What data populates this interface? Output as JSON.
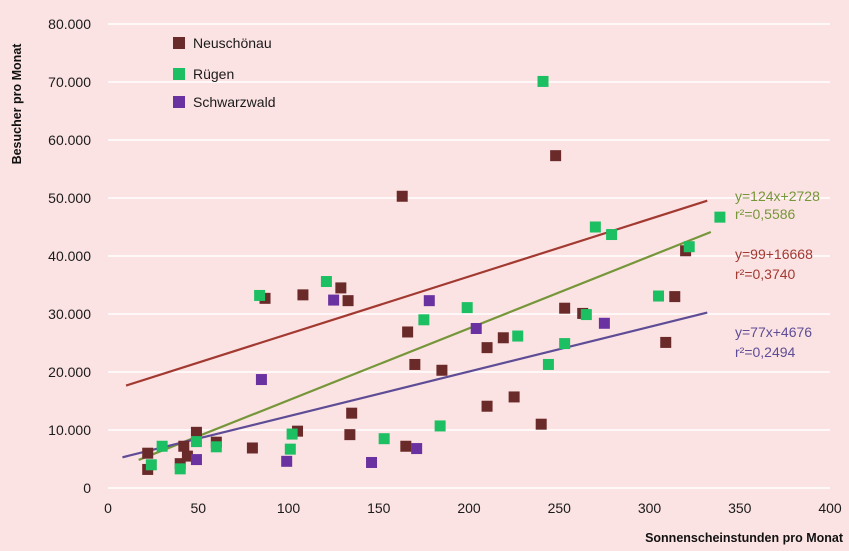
{
  "chart_data": {
    "type": "scatter",
    "title": "",
    "xlabel": "Sonnenscheinstunden pro Monat",
    "ylabel": "Besucher pro Monat",
    "xlim": [
      0,
      400
    ],
    "ylim": [
      0,
      80000
    ],
    "x_ticks": [
      0,
      50,
      100,
      150,
      200,
      250,
      300,
      350,
      400
    ],
    "y_ticks": [
      0,
      10000,
      20000,
      30000,
      40000,
      50000,
      60000,
      70000,
      80000
    ],
    "x_tick_labels": [
      "0",
      "50",
      "100",
      "150",
      "200",
      "250",
      "300",
      "350",
      "400"
    ],
    "y_tick_labels": [
      "0",
      "10.000",
      "20.000",
      "30.000",
      "40.000",
      "50.000",
      "60.000",
      "70.000",
      "80.000"
    ],
    "grid": "horizontal",
    "legend_position": "top-left",
    "series": [
      {
        "name": "Neuschönau",
        "color": "#6b2a2a",
        "points": [
          [
            22,
            3200
          ],
          [
            22,
            6000
          ],
          [
            40,
            4200
          ],
          [
            42,
            7200
          ],
          [
            44,
            5500
          ],
          [
            49,
            9600
          ],
          [
            60,
            7900
          ],
          [
            80,
            6900
          ],
          [
            87,
            32700
          ],
          [
            105,
            9800
          ],
          [
            108,
            33300
          ],
          [
            129,
            34500
          ],
          [
            133,
            32300
          ],
          [
            134,
            9200
          ],
          [
            135,
            12900
          ],
          [
            163,
            50300
          ],
          [
            165,
            7200
          ],
          [
            166,
            26900
          ],
          [
            170,
            21300
          ],
          [
            185,
            20300
          ],
          [
            210,
            14100
          ],
          [
            210,
            24200
          ],
          [
            219,
            25900
          ],
          [
            225,
            15700
          ],
          [
            240,
            11000
          ],
          [
            248,
            57300
          ],
          [
            253,
            31000
          ],
          [
            263,
            30100
          ],
          [
            309,
            25100
          ],
          [
            314,
            33000
          ],
          [
            320,
            40900
          ]
        ],
        "trend": {
          "slope": 99,
          "intercept": 16668,
          "x_range": [
            10,
            332
          ]
        },
        "equation_label": "y=99+16668",
        "r2_label": "r²=0,3740"
      },
      {
        "name": "Rügen",
        "color": "#1cbf62",
        "points": [
          [
            24,
            4000
          ],
          [
            30,
            7200
          ],
          [
            40,
            3300
          ],
          [
            49,
            8000
          ],
          [
            60,
            7100
          ],
          [
            84,
            33200
          ],
          [
            101,
            6700
          ],
          [
            102,
            9300
          ],
          [
            121,
            35600
          ],
          [
            153,
            8500
          ],
          [
            175,
            29000
          ],
          [
            184,
            10700
          ],
          [
            199,
            31100
          ],
          [
            227,
            26200
          ],
          [
            241,
            70100
          ],
          [
            244,
            21300
          ],
          [
            253,
            24900
          ],
          [
            265,
            29900
          ],
          [
            270,
            45000
          ],
          [
            279,
            43700
          ],
          [
            305,
            33100
          ],
          [
            322,
            41600
          ],
          [
            339,
            46700
          ]
        ],
        "trend": {
          "slope": 124,
          "intercept": 2728,
          "x_range": [
            17,
            334
          ]
        },
        "equation_label": "y=124x+2728",
        "r2_label": "r²=0,5586"
      },
      {
        "name": "Schwarzwald",
        "color": "#6a32a0",
        "points": [
          [
            49,
            4900
          ],
          [
            85,
            18700
          ],
          [
            99,
            4600
          ],
          [
            125,
            32400
          ],
          [
            146,
            4400
          ],
          [
            171,
            6800
          ],
          [
            178,
            32300
          ],
          [
            204,
            27500
          ],
          [
            275,
            28400
          ]
        ],
        "trend": {
          "slope": 77,
          "intercept": 4676,
          "x_range": [
            8,
            332
          ]
        },
        "equation_label": "y=77x+4676",
        "r2_label": "r²=0,2494"
      }
    ]
  },
  "trend_colors": [
    "#a23a32",
    "#76963a",
    "#5e4d96"
  ],
  "grid_color": "#ffffff"
}
